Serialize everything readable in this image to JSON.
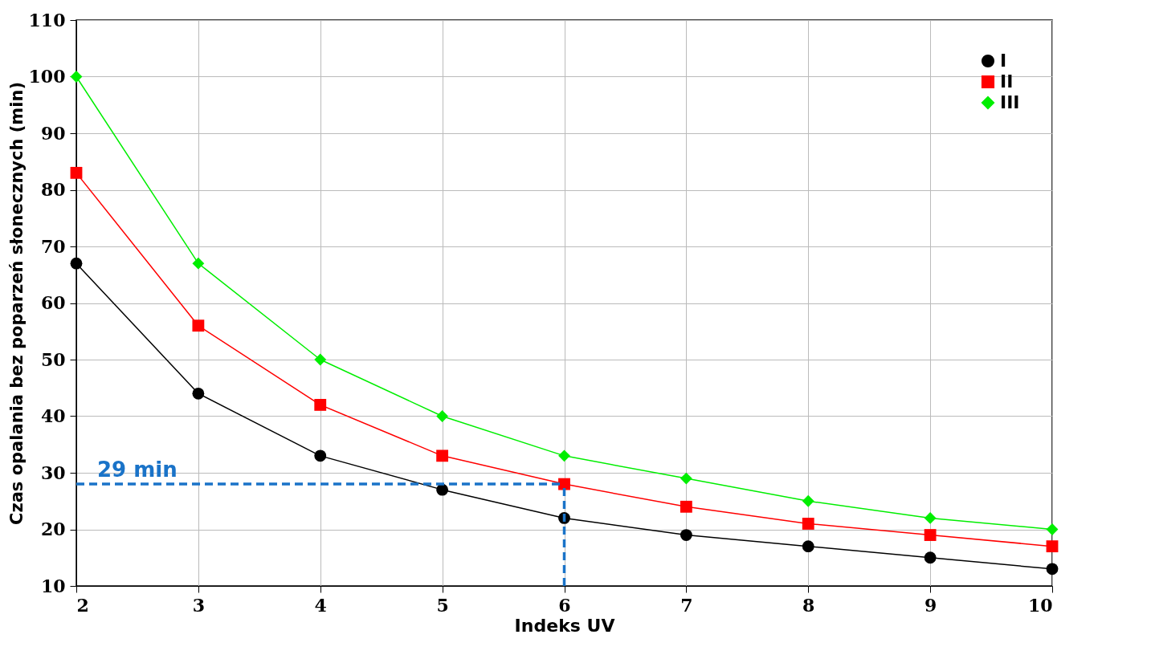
{
  "chart_data": {
    "type": "line",
    "xlabel": "Indeks UV",
    "ylabel": "Czas opalania bez poparzeń słonecznych (min)",
    "x": [
      2,
      3,
      4,
      5,
      6,
      7,
      8,
      9,
      10
    ],
    "series": [
      {
        "name": "I",
        "color": "#000000",
        "marker": "circle",
        "values": [
          67,
          44,
          33,
          27,
          22,
          19,
          17,
          15,
          13
        ]
      },
      {
        "name": "II",
        "color": "#ff0000",
        "marker": "square",
        "values": [
          83,
          56,
          42,
          33,
          28,
          24,
          21,
          19,
          17
        ]
      },
      {
        "name": "III",
        "color": "#00ee00",
        "marker": "diamond",
        "values": [
          100,
          67,
          50,
          40,
          33,
          29,
          25,
          22,
          20
        ]
      }
    ],
    "ref_lines": [
      {
        "axis": "y",
        "value": 28,
        "color": "#1a73c8",
        "line_style": "dashed",
        "label": "29 min"
      },
      {
        "axis": "x",
        "value": 6,
        "color": "#1a73c8",
        "line_style": "dashed"
      }
    ],
    "xlim": [
      2,
      10
    ],
    "xticks": [
      2,
      3,
      4,
      5,
      6,
      7,
      8,
      9,
      10
    ],
    "ylim": [
      10,
      110
    ],
    "yticks": [
      10,
      20,
      30,
      40,
      50,
      60,
      70,
      80,
      90,
      100,
      110
    ],
    "grid": true,
    "legend": "top right"
  }
}
